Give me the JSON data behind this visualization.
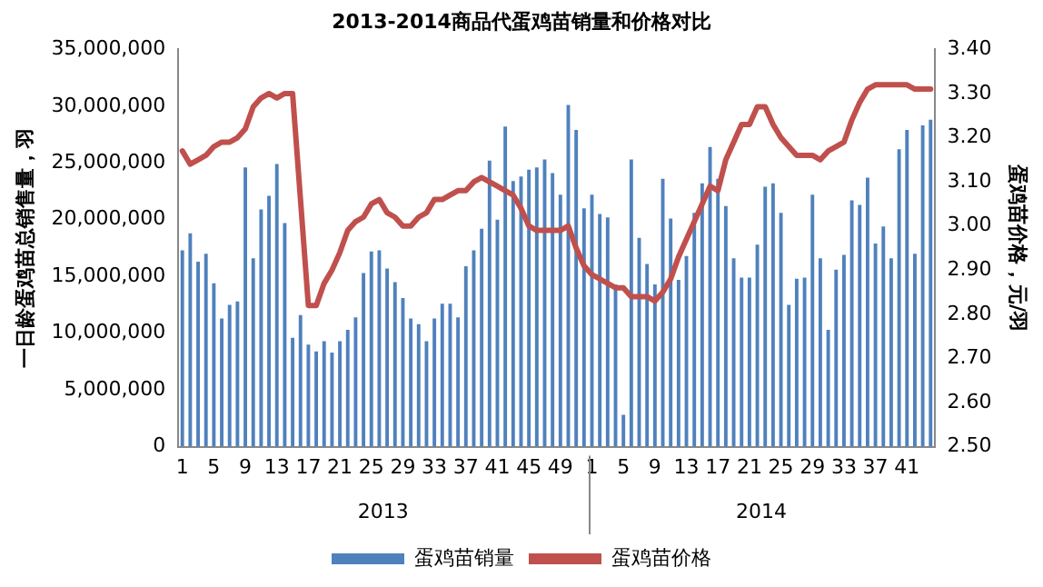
{
  "chart_data": {
    "type": "bar",
    "title": "2013-2014商品代蛋鸡苗销量和价格对比",
    "ylabel": "一日龄蛋鸡苗总销售量，羽",
    "y2label": "蛋鸡苗价格，元/羽",
    "categories": [
      "1",
      null,
      null,
      null,
      "5",
      null,
      null,
      null,
      "9",
      null,
      null,
      null,
      "13",
      null,
      null,
      null,
      "17",
      null,
      null,
      null,
      "21",
      null,
      null,
      null,
      "25",
      null,
      null,
      null,
      "29",
      null,
      null,
      null,
      "33",
      null,
      null,
      null,
      "37",
      null,
      null,
      null,
      "41",
      null,
      null,
      null,
      "45",
      null,
      null,
      null,
      "49",
      null,
      null,
      null,
      "1",
      null,
      null,
      null,
      "5",
      null,
      null,
      null,
      "9",
      null,
      null,
      null,
      "13",
      null,
      null,
      null,
      "17",
      null,
      null,
      null,
      "21",
      null,
      null,
      null,
      "25",
      null,
      null,
      null,
      "29",
      null,
      null,
      null,
      "33",
      null,
      null,
      null,
      "37",
      null,
      null,
      null,
      "41",
      null,
      null,
      null
    ],
    "annotations": [
      "2013",
      "2014"
    ],
    "series": [
      {
        "name": "蛋鸡苗销量",
        "color": "#4f81bd",
        "values": [
          17300000,
          18800000,
          16300000,
          17000000,
          14400000,
          11300000,
          12500000,
          12800000,
          24600000,
          16600000,
          20900000,
          22100000,
          24900000,
          19700000,
          9600000,
          11600000,
          9000000,
          8400000,
          9300000,
          8300000,
          9300000,
          10300000,
          11400000,
          15300000,
          17200000,
          17300000,
          15700000,
          14500000,
          13100000,
          11300000,
          10800000,
          9300000,
          11300000,
          12600000,
          12600000,
          11400000,
          15900000,
          17300000,
          19200000,
          25200000,
          20000000,
          28200000,
          23400000,
          23800000,
          24400000,
          24600000,
          25300000,
          24100000,
          22200000,
          30100000,
          27900000,
          21000000,
          22200000,
          20500000,
          20200000,
          14300000,
          2800000,
          25300000,
          18400000,
          16100000,
          14300000,
          23600000,
          20100000,
          14700000,
          16800000,
          20600000,
          23200000,
          26400000,
          23600000,
          21200000,
          16600000,
          14900000,
          14900000,
          17800000,
          22900000,
          23200000,
          20600000,
          12500000,
          14800000,
          14900000,
          22200000,
          16600000,
          10300000,
          15600000,
          16900000,
          21700000,
          21300000,
          23700000,
          17900000,
          19400000,
          16600000,
          26200000,
          27900000,
          17000000,
          28300000,
          28800000
        ]
      },
      {
        "name": "蛋鸡苗价格",
        "type": "line",
        "axis": "y2",
        "color": "#c0504d",
        "values": [
          3.17,
          3.14,
          3.15,
          3.16,
          3.18,
          3.19,
          3.19,
          3.2,
          3.22,
          3.27,
          3.29,
          3.3,
          3.29,
          3.3,
          3.3,
          3.06,
          2.82,
          2.82,
          2.87,
          2.9,
          2.94,
          2.99,
          3.01,
          3.02,
          3.05,
          3.06,
          3.03,
          3.02,
          3.0,
          3.0,
          3.02,
          3.03,
          3.06,
          3.06,
          3.07,
          3.08,
          3.08,
          3.1,
          3.11,
          3.1,
          3.09,
          3.08,
          3.07,
          3.04,
          3.0,
          2.99,
          2.99,
          2.99,
          2.99,
          3.0,
          2.95,
          2.91,
          2.89,
          2.88,
          2.87,
          2.86,
          2.86,
          2.84,
          2.84,
          2.84,
          2.83,
          2.85,
          2.88,
          2.93,
          2.97,
          3.01,
          3.05,
          3.09,
          3.08,
          3.15,
          3.19,
          3.23,
          3.23,
          3.27,
          3.27,
          3.23,
          3.2,
          3.18,
          3.16,
          3.16,
          3.16,
          3.15,
          3.17,
          3.18,
          3.19,
          3.24,
          3.28,
          3.31,
          3.32,
          3.32,
          3.32,
          3.32,
          3.32,
          3.31,
          3.31,
          3.31
        ]
      }
    ],
    "ylim": [
      0,
      35000000
    ],
    "yticks": [
      0,
      {
        "value": 5000000,
        "label": "5,000,000"
      },
      {
        "value": 10000000,
        "label": "10,000,000"
      },
      {
        "value": 15000000,
        "label": "15,000,000"
      },
      {
        "value": 20000000,
        "label": "20,000,000"
      },
      {
        "value": 25000000,
        "label": "25,000,000"
      },
      {
        "value": 30000000,
        "label": "30,000,000"
      },
      {
        "value": 35000000,
        "label": "35,000,000"
      }
    ],
    "y2lim": [
      2.5,
      3.4
    ],
    "y2ticks": [
      {
        "value": 2.5,
        "label": "2.50"
      },
      {
        "value": 2.6,
        "label": "2.60"
      },
      {
        "value": 2.7,
        "label": "2.70"
      },
      {
        "value": 2.8,
        "label": "2.80"
      },
      {
        "value": 2.9,
        "label": "2.90"
      },
      {
        "value": 3.0,
        "label": "3.00"
      },
      {
        "value": 3.1,
        "label": "3.10"
      },
      {
        "value": 3.2,
        "label": "3.20"
      },
      {
        "value": 3.3,
        "label": "3.30"
      },
      {
        "value": 3.4,
        "label": "3.40"
      }
    ],
    "grid": false,
    "legend": "bottom",
    "marker": "none",
    "line_style": "solid"
  }
}
